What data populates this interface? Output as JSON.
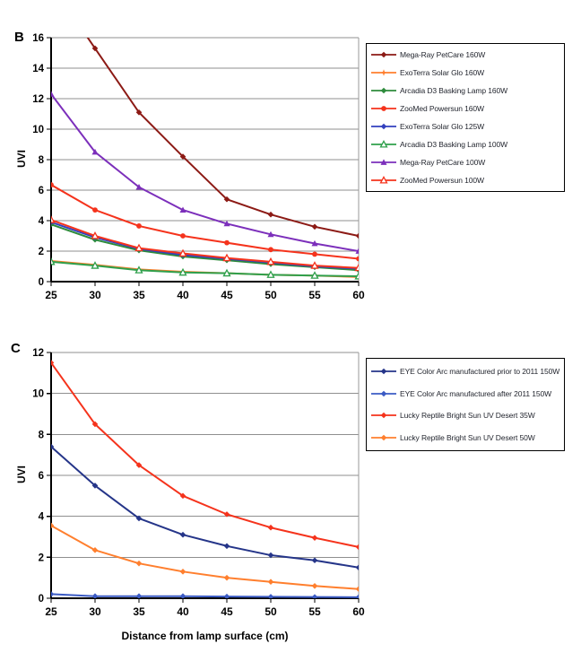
{
  "figure": {
    "background": "#ffffff",
    "grid_color": "#8f8f8f",
    "axis_color": "#000000",
    "right_border_color": "#999999"
  },
  "chart_data": [
    {
      "id": "B",
      "type": "line",
      "panel_label": "B",
      "title": "",
      "xlabel": "",
      "ylabel": "UVI",
      "x": [
        25,
        30,
        35,
        40,
        45,
        50,
        55,
        60
      ],
      "xlim": [
        25,
        60
      ],
      "ylim": [
        0,
        16
      ],
      "ytick_step": 2,
      "grid": true,
      "legend_position": "right",
      "series": [
        {
          "name": "Mega-Ray PetCare 160W",
          "color": "#8C1A15",
          "marker": "diamond",
          "open": false,
          "values": [
            19.5,
            15.3,
            11.1,
            8.2,
            5.4,
            4.4,
            3.6,
            3.0
          ],
          "note": "value at 25 cm exceeds the axis maximum; line enters the plot from above"
        },
        {
          "name": "ExoTerra Solar Glo 160W",
          "color": "#FF7F2E",
          "marker": "star",
          "open": false,
          "values": [
            1.35,
            1.1,
            0.8,
            0.65,
            0.55,
            0.45,
            0.4,
            0.3
          ]
        },
        {
          "name": "Arcadia D3 Basking Lamp 160W",
          "color": "#2E8B3C",
          "marker": "diamond",
          "open": false,
          "values": [
            3.75,
            2.75,
            2.05,
            1.65,
            1.4,
            1.15,
            0.95,
            0.75
          ]
        },
        {
          "name": "ZooMed Powersun 160W",
          "color": "#F5331C",
          "marker": "circle",
          "open": false,
          "values": [
            6.35,
            4.7,
            3.65,
            3.0,
            2.55,
            2.1,
            1.8,
            1.5
          ]
        },
        {
          "name": "ExoTerra Solar Glo 125W",
          "color": "#3340BE",
          "marker": "diamond",
          "open": false,
          "values": [
            3.9,
            2.9,
            2.15,
            1.75,
            1.5,
            1.25,
            1.0,
            0.85
          ]
        },
        {
          "name": "Arcadia D3 Basking Lamp 100W",
          "color": "#2FA04C",
          "marker": "triangle",
          "open": true,
          "values": [
            1.3,
            1.05,
            0.75,
            0.6,
            0.55,
            0.45,
            0.4,
            0.35
          ]
        },
        {
          "name": "Mega-Ray PetCare 100W",
          "color": "#7C2FBB",
          "marker": "triangle",
          "open": false,
          "values": [
            12.3,
            8.5,
            6.2,
            4.7,
            3.8,
            3.1,
            2.5,
            2.0
          ]
        },
        {
          "name": "ZooMed Powersun 100W",
          "color": "#F5331C",
          "marker": "triangle",
          "open": true,
          "values": [
            4.05,
            3.0,
            2.2,
            1.85,
            1.55,
            1.3,
            1.05,
            0.9
          ]
        }
      ]
    },
    {
      "id": "C",
      "type": "line",
      "panel_label": "C",
      "title": "",
      "xlabel": "Distance from lamp surface (cm)",
      "ylabel": "UVI",
      "x": [
        25,
        30,
        35,
        40,
        45,
        50,
        55,
        60
      ],
      "xlim": [
        25,
        60
      ],
      "ylim": [
        0,
        12
      ],
      "ytick_step": 2,
      "grid": true,
      "legend_position": "right",
      "series": [
        {
          "name": "EYE Color Arc manufactured prior to 2011 150W",
          "color": "#253589",
          "marker": "diamond",
          "open": false,
          "values": [
            7.4,
            5.5,
            3.9,
            3.1,
            2.55,
            2.1,
            1.85,
            1.5
          ]
        },
        {
          "name": "EYE Color Arc manufactured after 2011 150W",
          "color": "#3B5BC4",
          "marker": "diamond",
          "open": false,
          "values": [
            0.2,
            0.1,
            0.1,
            0.1,
            0.08,
            0.07,
            0.06,
            0.05
          ]
        },
        {
          "name": "Lucky Reptile Bright Sun UV Desert 35W",
          "color": "#F5331C",
          "marker": "diamond",
          "open": false,
          "values": [
            11.5,
            8.5,
            6.5,
            5.0,
            4.1,
            3.45,
            2.95,
            2.5
          ]
        },
        {
          "name": "Lucky Reptile Bright Sun UV Desert 50W",
          "color": "#FF7F2E",
          "marker": "diamond",
          "open": false,
          "values": [
            3.55,
            2.35,
            1.7,
            1.3,
            1.0,
            0.8,
            0.6,
            0.45
          ]
        }
      ]
    }
  ]
}
